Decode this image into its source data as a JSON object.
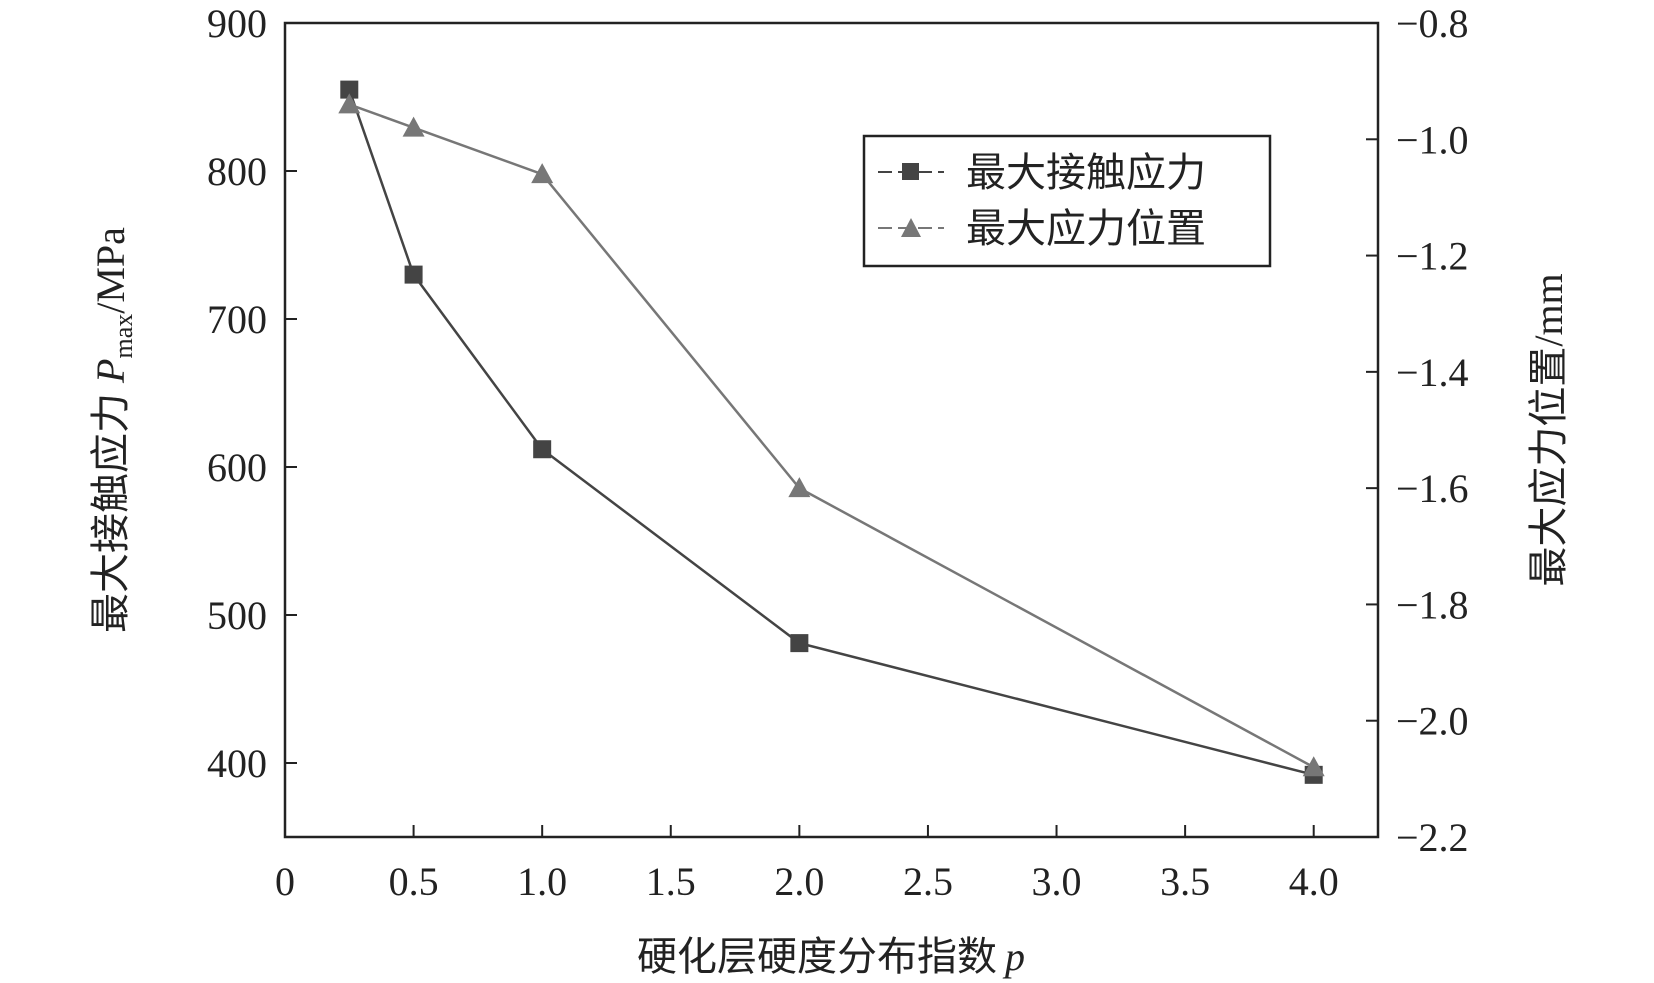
{
  "chart_data": {
    "type": "line",
    "title": "",
    "xlabel": "硬化层硬度分布指数",
    "xlabel_symbol": "p",
    "ylabel_prefix": "最大接触应力",
    "ylabel_symbol": "P",
    "ylabel_subscript": "max",
    "ylabel_unit": "/MPa",
    "y2label": "最大应力位置/mm",
    "xlim": [
      0,
      4.25
    ],
    "ylim": [
      350,
      900
    ],
    "y2lim": [
      -2.2,
      -0.8
    ],
    "x_ticks": [
      0,
      0.5,
      1.0,
      1.5,
      2.0,
      2.5,
      3.0,
      3.5,
      4.0
    ],
    "x_tick_labels": [
      "0",
      "0.5",
      "1.0",
      "1.5",
      "2.0",
      "2.5",
      "3.0",
      "3.5",
      "4.0"
    ],
    "y_ticks": [
      400,
      500,
      600,
      700,
      800,
      900
    ],
    "y_tick_labels": [
      "400",
      "500",
      "600",
      "700",
      "800",
      "900"
    ],
    "y2_ticks": [
      -2.2,
      -2.0,
      -1.8,
      -1.6,
      -1.4,
      -1.2,
      -1.0,
      -0.8
    ],
    "y2_tick_labels": [
      "−2.2",
      "−2.0",
      "−1.8",
      "−1.6",
      "−1.4",
      "−1.2",
      "−1.0",
      "−0.8"
    ],
    "grid": false,
    "legend_position": "top-right",
    "series": [
      {
        "name": "最大接触应力",
        "axis": "left",
        "marker": "square",
        "color": "#444444",
        "x": [
          0.25,
          0.5,
          1.0,
          2.0,
          4.0
        ],
        "y": [
          855,
          730,
          612,
          481,
          392
        ]
      },
      {
        "name": "最大应力位置",
        "axis": "right",
        "marker": "triangle",
        "color": "#777777",
        "x": [
          0.25,
          0.5,
          1.0,
          2.0,
          4.0
        ],
        "y": [
          -0.94,
          -0.98,
          -1.06,
          -1.6,
          -2.08
        ]
      }
    ]
  }
}
